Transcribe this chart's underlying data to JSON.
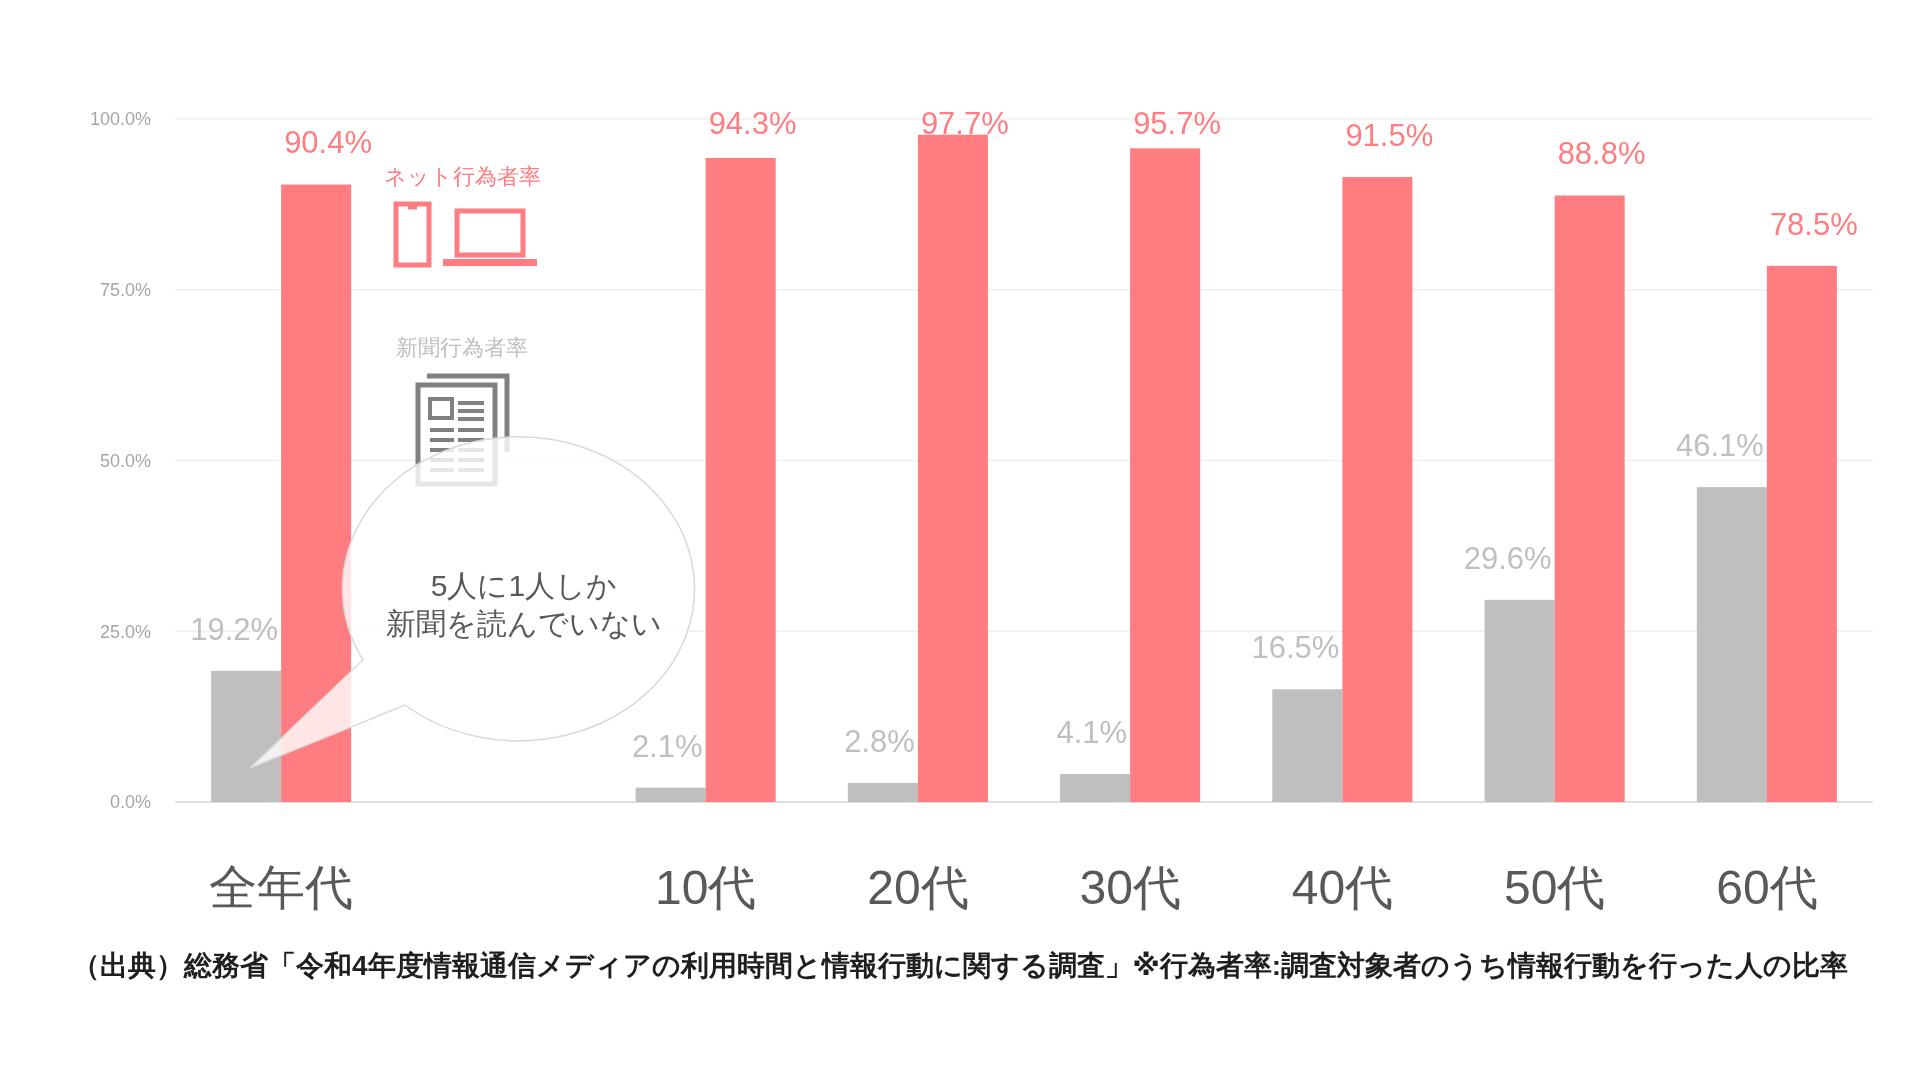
{
  "chart_data": {
    "type": "bar",
    "categories": [
      "全年代",
      null,
      "10代",
      "20代",
      "30代",
      "40代",
      "50代",
      "60代"
    ],
    "series": [
      {
        "name": "新聞行為者率",
        "color": "#bfbfbf",
        "values": [
          19.2,
          null,
          2.1,
          2.8,
          4.1,
          16.5,
          29.6,
          46.1
        ],
        "value_labels": [
          "19.2%",
          null,
          "2.1%",
          "2.8%",
          "4.1%",
          "16.5%",
          "29.6%",
          "46.1%"
        ]
      },
      {
        "name": "ネット行為者率",
        "color": "#ff7c80",
        "values": [
          90.4,
          null,
          94.3,
          97.7,
          95.7,
          91.5,
          88.8,
          78.5
        ],
        "value_labels": [
          "90.4%",
          null,
          "94.3%",
          "97.7%",
          "95.7%",
          "91.5%",
          "88.8%",
          "78.5%"
        ]
      }
    ],
    "ylim": [
      0,
      100
    ],
    "yticks": [
      {
        "value": 0,
        "label": "0.0%"
      },
      {
        "value": 25,
        "label": "25.0%"
      },
      {
        "value": 50,
        "label": "50.0%"
      },
      {
        "value": 75,
        "label": "75.0%"
      },
      {
        "value": 100,
        "label": "100.0%"
      }
    ],
    "grid": "y",
    "legend": "top left",
    "annotations": [
      "5人に1人しか",
      "新聞を読んでいない",
      "（出典）総務省「令和4年度情報通信メディアの利用時間と情報行動に関する調査」※行為者率:調査対象者のうち情報行動を行った人の比率"
    ]
  }
}
